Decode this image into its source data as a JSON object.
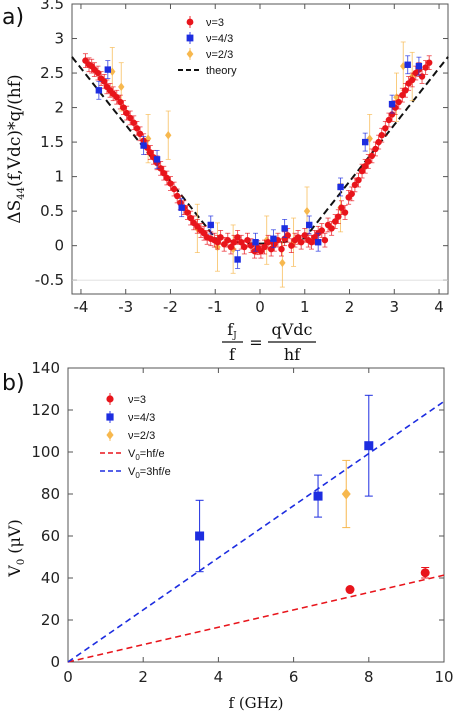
{
  "panels": {
    "a": "a)",
    "b": "b)"
  },
  "colors": {
    "nu3": "#e8141b",
    "nu43": "#1d2de0",
    "nu23": "#f7b84e",
    "theory": "#111111",
    "red_line": "#e8141b",
    "blue_line": "#1d2de0"
  },
  "chart_data": [
    {
      "type": "scatter",
      "panel": "a",
      "xlim": [
        -4.2,
        4.2
      ],
      "ylim": [
        -0.7,
        3.5
      ],
      "xticks": [
        "-4",
        "-3",
        "-2",
        "-1",
        "0",
        "1",
        "2",
        "3",
        "4"
      ],
      "yticks": [
        "-0.5",
        "0",
        "0.5",
        "1",
        "1.5",
        "2",
        "2.5",
        "3",
        "3.5"
      ],
      "ylabel": {
        "pre": "ΔS",
        "sub": "44",
        "post": "(f,Vdc)*q/(hf)"
      },
      "xlabel": {
        "lhs_num": "f",
        "lhs_num_sub": "J",
        "lhs_den": "f",
        "eq": "=",
        "rhs_num": "qVdc",
        "rhs_den": "hf"
      },
      "legend": {
        "position": "top-center",
        "entries": [
          "ν=3",
          "ν=4/3",
          "ν=2/3",
          "theory"
        ]
      },
      "series": [
        {
          "name": "ν=3",
          "marker": "circle",
          "points": [
            [
              -3.9,
              2.68
            ],
            [
              -3.82,
              2.62
            ],
            [
              -3.76,
              2.6
            ],
            [
              -3.7,
              2.55
            ],
            [
              -3.62,
              2.5
            ],
            [
              -3.55,
              2.42
            ],
            [
              -3.48,
              2.38
            ],
            [
              -3.42,
              2.3
            ],
            [
              -3.35,
              2.25
            ],
            [
              -3.28,
              2.2
            ],
            [
              -3.2,
              2.15
            ],
            [
              -3.12,
              2.08
            ],
            [
              -3.05,
              2.0
            ],
            [
              -2.98,
              1.92
            ],
            [
              -2.9,
              1.85
            ],
            [
              -2.82,
              1.78
            ],
            [
              -2.75,
              1.7
            ],
            [
              -2.68,
              1.62
            ],
            [
              -2.6,
              1.52
            ],
            [
              -2.52,
              1.42
            ],
            [
              -2.45,
              1.35
            ],
            [
              -2.38,
              1.28
            ],
            [
              -2.3,
              1.2
            ],
            [
              -2.22,
              1.12
            ],
            [
              -2.15,
              1.05
            ],
            [
              -2.08,
              0.98
            ],
            [
              -2.0,
              0.9
            ],
            [
              -1.92,
              0.82
            ],
            [
              -1.85,
              0.72
            ],
            [
              -1.78,
              0.62
            ],
            [
              -1.7,
              0.55
            ],
            [
              -1.62,
              0.48
            ],
            [
              -1.55,
              0.4
            ],
            [
              -1.48,
              0.33
            ],
            [
              -1.4,
              0.28
            ],
            [
              -1.32,
              0.22
            ],
            [
              -1.25,
              0.18
            ],
            [
              -1.18,
              0.12
            ],
            [
              -1.1,
              0.1
            ],
            [
              -1.02,
              0.08
            ],
            [
              -0.95,
              0.05
            ],
            [
              -0.88,
              0.12
            ],
            [
              -0.8,
              0.02
            ],
            [
              -0.72,
              0.08
            ],
            [
              -0.65,
              -0.02
            ],
            [
              -0.58,
              0.05
            ],
            [
              -0.5,
              0.12
            ],
            [
              -0.42,
              0.05
            ],
            [
              -0.35,
              -0.02
            ],
            [
              -0.28,
              0.08
            ],
            [
              -0.2,
              0.0
            ],
            [
              -0.12,
              -0.08
            ],
            [
              -0.05,
              -0.03
            ],
            [
              0.02,
              -0.08
            ],
            [
              0.1,
              -0.02
            ],
            [
              0.18,
              0.05
            ],
            [
              0.25,
              -0.05
            ],
            [
              0.32,
              0.02
            ],
            [
              0.4,
              0.08
            ],
            [
              0.48,
              -0.05
            ],
            [
              0.55,
              0.1
            ],
            [
              0.62,
              0.15
            ],
            [
              0.7,
              0.0
            ],
            [
              0.78,
              0.08
            ],
            [
              0.85,
              0.12
            ],
            [
              0.92,
              0.05
            ],
            [
              1.0,
              0.15
            ],
            [
              1.08,
              0.08
            ],
            [
              1.15,
              0.05
            ],
            [
              1.22,
              0.12
            ],
            [
              1.3,
              0.18
            ],
            [
              1.38,
              0.22
            ],
            [
              1.45,
              0.08
            ],
            [
              1.52,
              0.3
            ],
            [
              1.6,
              0.25
            ],
            [
              1.68,
              0.35
            ],
            [
              1.75,
              0.42
            ],
            [
              1.82,
              0.55
            ],
            [
              1.9,
              0.48
            ],
            [
              1.98,
              0.7
            ],
            [
              2.05,
              0.75
            ],
            [
              2.12,
              0.88
            ],
            [
              2.2,
              0.95
            ],
            [
              2.28,
              1.08
            ],
            [
              2.35,
              1.15
            ],
            [
              2.42,
              1.22
            ],
            [
              2.5,
              1.3
            ],
            [
              2.58,
              1.4
            ],
            [
              2.65,
              1.5
            ],
            [
              2.72,
              1.6
            ],
            [
              2.8,
              1.7
            ],
            [
              2.88,
              1.82
            ],
            [
              2.95,
              1.9
            ],
            [
              3.02,
              2.0
            ],
            [
              3.1,
              2.08
            ],
            [
              3.18,
              2.18
            ],
            [
              3.25,
              2.25
            ],
            [
              3.32,
              2.35
            ],
            [
              3.4,
              2.4
            ],
            [
              3.48,
              2.5
            ],
            [
              3.55,
              2.55
            ],
            [
              3.62,
              2.45
            ],
            [
              3.7,
              2.58
            ],
            [
              3.78,
              2.65
            ]
          ]
        },
        {
          "name": "ν=4/3",
          "marker": "square",
          "points": [
            [
              -3.6,
              2.25
            ],
            [
              -3.4,
              2.55
            ],
            [
              -2.6,
              1.45
            ],
            [
              -2.3,
              1.25
            ],
            [
              -1.75,
              0.55
            ],
            [
              -1.1,
              0.3
            ],
            [
              -0.5,
              -0.2
            ],
            [
              -0.1,
              0.05
            ],
            [
              0.55,
              0.25
            ],
            [
              0.3,
              0.1
            ],
            [
              1.1,
              0.3
            ],
            [
              1.3,
              0.05
            ],
            [
              1.8,
              0.85
            ],
            [
              2.35,
              1.5
            ],
            [
              2.95,
              2.05
            ],
            [
              3.3,
              2.62
            ],
            [
              3.55,
              2.6
            ]
          ]
        },
        {
          "name": "ν=2/3",
          "marker": "diamond",
          "points": [
            [
              -3.3,
              2.52
            ],
            [
              -3.1,
              2.3
            ],
            [
              -2.5,
              1.55
            ],
            [
              -2.05,
              1.6
            ],
            [
              -1.4,
              0.25
            ],
            [
              -0.95,
              -0.02
            ],
            [
              -0.6,
              -0.05
            ],
            [
              0.15,
              0.08
            ],
            [
              0.5,
              -0.25
            ],
            [
              0.75,
              0.05
            ],
            [
              1.05,
              0.5
            ],
            [
              1.8,
              0.55
            ],
            [
              2.45,
              1.55
            ],
            [
              3.05,
              2.15
            ],
            [
              3.2,
              2.6
            ],
            [
              3.4,
              2.45
            ]
          ]
        }
      ],
      "theory": "|x| shifted"
    },
    {
      "type": "scatter",
      "panel": "b",
      "xlim": [
        0,
        10
      ],
      "ylim": [
        0,
        140
      ],
      "xticks": [
        "0",
        "2",
        "4",
        "6",
        "8",
        "10"
      ],
      "yticks": [
        "0",
        "20",
        "40",
        "60",
        "80",
        "100",
        "120",
        "140"
      ],
      "xlabel": "f (GHz)",
      "ylabel": {
        "pre": "V",
        "sub": "0",
        "post": " (μV)"
      },
      "legend": {
        "position": "top-left",
        "entries": [
          "ν=3",
          "ν=4/3",
          "ν=2/3",
          "V0=hf/e",
          "V0=3hf/e"
        ]
      },
      "series": [
        {
          "name": "ν=3",
          "marker": "circle",
          "points": [
            [
              7.5,
              34.5,
              0
            ],
            [
              9.5,
              42.5,
              2.5
            ]
          ]
        },
        {
          "name": "ν=4/3",
          "marker": "square",
          "points": [
            [
              3.5,
              60,
              17
            ],
            [
              6.65,
              79,
              10
            ],
            [
              8,
              103,
              24
            ]
          ]
        },
        {
          "name": "ν=2/3",
          "marker": "diamond",
          "points": [
            [
              7.4,
              80,
              16
            ]
          ]
        }
      ],
      "lines": [
        {
          "name": "V0=hf/e",
          "slope": 4.136
        },
        {
          "name": "V0=3hf/e",
          "slope": 12.408
        }
      ]
    }
  ],
  "legend_a": [
    {
      "key": "nu3",
      "label": "ν=3"
    },
    {
      "key": "nu43",
      "label": "ν=4/3"
    },
    {
      "key": "nu23",
      "label": "ν=2/3"
    },
    {
      "key": "theory",
      "label": "theory"
    }
  ],
  "legend_b": [
    {
      "key": "nu3",
      "label": "ν=3"
    },
    {
      "key": "nu43",
      "label": "ν=4/3"
    },
    {
      "key": "nu23",
      "label": "ν=2/3"
    },
    {
      "key": "red_line",
      "label_pre": "V",
      "label_sub": "0",
      "label_post": "=hf/e"
    },
    {
      "key": "blue_line",
      "label_pre": "V",
      "label_sub": "0",
      "label_post": "=3hf/e"
    }
  ]
}
